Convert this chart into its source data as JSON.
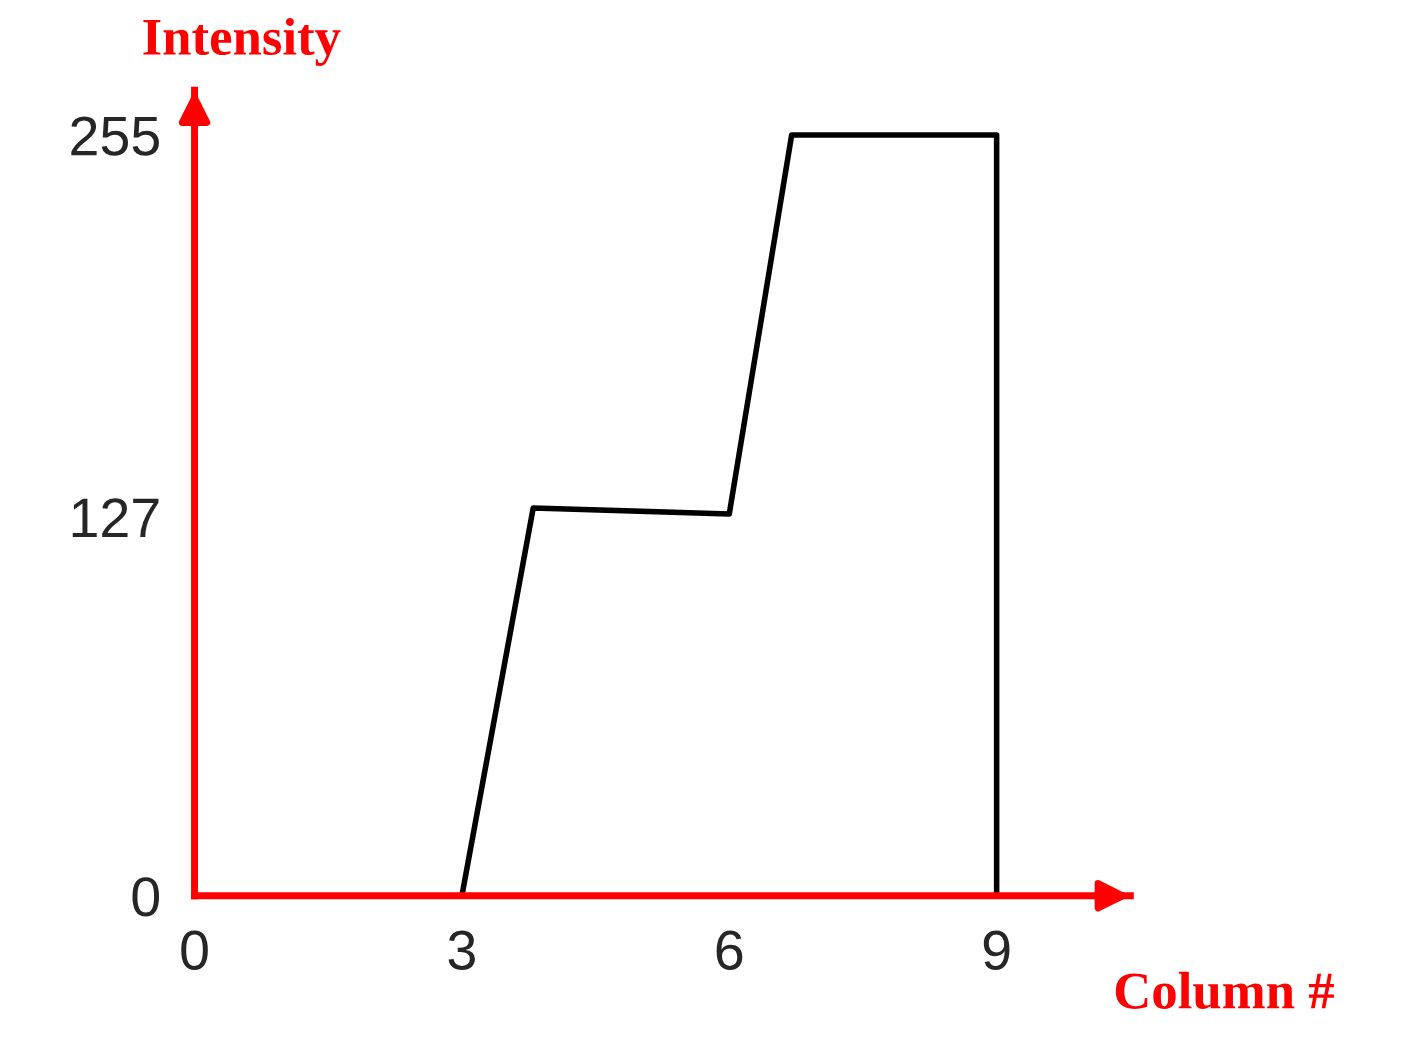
{
  "chart_data": {
    "type": "line",
    "xlabel": "Column #",
    "ylabel": "Intensity",
    "x": [
      0,
      3,
      3.8,
      6,
      6.7,
      9,
      9
    ],
    "series": [
      {
        "color": "#000000",
        "values": [
          0,
          0,
          130,
          128,
          255,
          255,
          0
        ]
      }
    ],
    "xlim": [
      0,
      10.5
    ],
    "ylim": [
      0,
      270
    ],
    "xticks": [
      0,
      3,
      6,
      9
    ],
    "yticks": [
      0,
      127,
      255
    ],
    "grid": false,
    "legend": false,
    "marker": "none",
    "line_style": "solid"
  }
}
